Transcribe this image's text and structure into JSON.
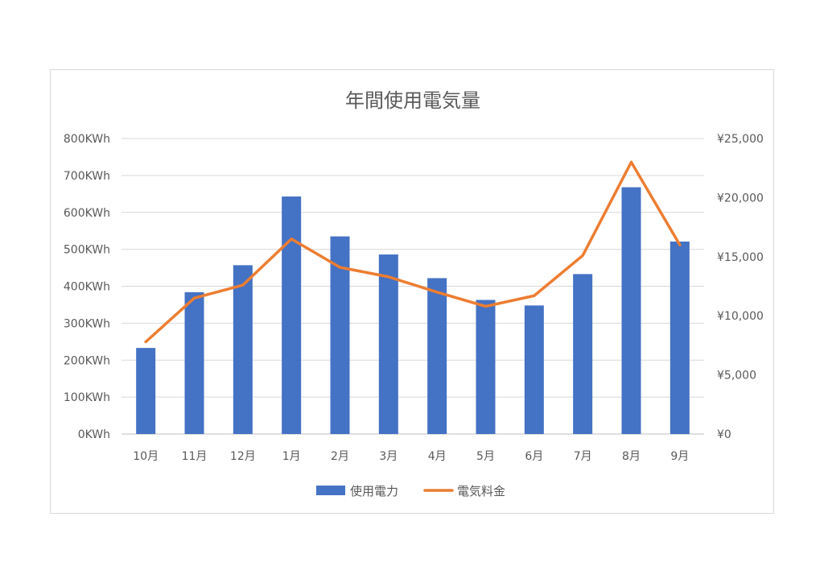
{
  "chart_data": {
    "type": "bar",
    "title": "年間使用電気量",
    "categories": [
      "10月",
      "11月",
      "12月",
      "1月",
      "2月",
      "3月",
      "4月",
      "5月",
      "6月",
      "7月",
      "8月",
      "9月"
    ],
    "series": [
      {
        "name": "使用電力",
        "type": "bar",
        "axis": "left",
        "color": "#4472c4",
        "values": [
          233,
          384,
          457,
          643,
          535,
          486,
          422,
          363,
          348,
          433,
          668,
          521
        ]
      },
      {
        "name": "電気料金",
        "type": "line",
        "axis": "right",
        "color": "#ed7d31",
        "values": [
          7800,
          11500,
          12600,
          16500,
          14100,
          13300,
          12000,
          10800,
          11700,
          15100,
          23000,
          16000
        ]
      }
    ],
    "y_left": {
      "ylim": [
        0,
        800
      ],
      "ticks": [
        0,
        100,
        200,
        300,
        400,
        500,
        600,
        700,
        800
      ],
      "tick_labels": [
        "0KWh",
        "100KWh",
        "200KWh",
        "300KWh",
        "400KWh",
        "500KWh",
        "600KWh",
        "700KWh",
        "800KWh"
      ]
    },
    "y_right": {
      "ylim": [
        0,
        25000
      ],
      "ticks": [
        0,
        5000,
        10000,
        15000,
        20000,
        25000
      ],
      "tick_labels": [
        "¥0",
        "¥5,000",
        "¥10,000",
        "¥15,000",
        "¥20,000",
        "¥25,000"
      ]
    },
    "grid": true,
    "legend": "bottom"
  }
}
